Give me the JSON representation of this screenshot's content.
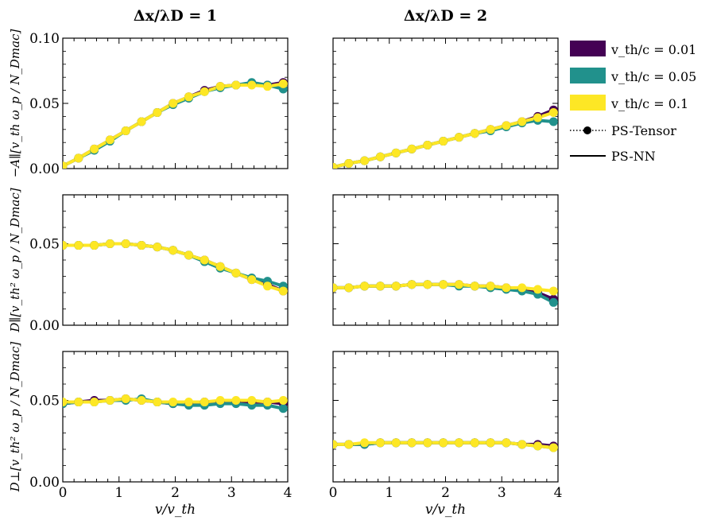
{
  "chart_data": {
    "type": "line",
    "columns": [
      {
        "title": "Δx/λD = 1"
      },
      {
        "title": "Δx/λD = 2"
      }
    ],
    "rows": [
      {
        "ylabel": "−A∥[v_th ω_p / N_Dmac]",
        "ylim": [
          0,
          0.1
        ],
        "yticks": [
          0.0,
          0.05,
          0.1
        ],
        "ytick_labels": [
          "0.00",
          "0.05",
          "0.10"
        ]
      },
      {
        "ylabel": "D∥[v_th² ω_p / N_Dmac]",
        "ylim": [
          0,
          0.08
        ],
        "yticks": [
          0.0,
          0.05
        ],
        "ytick_labels": [
          "0.00",
          "0.05"
        ]
      },
      {
        "ylabel": "D⊥[v_th² ω_p / N_Dmac]",
        "ylim": [
          0,
          0.08
        ],
        "yticks": [
          0.0,
          0.05
        ],
        "ytick_labels": [
          "0.00",
          "0.05"
        ]
      }
    ],
    "xlabel": "v/v_th",
    "xlim": [
      0,
      4
    ],
    "xticks": [
      0,
      1,
      2,
      3,
      4
    ],
    "xtick_labels": [
      "0",
      "1",
      "2",
      "3",
      "4"
    ],
    "x": [
      0.0,
      0.28,
      0.56,
      0.84,
      1.12,
      1.4,
      1.68,
      1.96,
      2.24,
      2.52,
      2.8,
      3.08,
      3.36,
      3.64,
      3.92
    ],
    "legend": [
      {
        "label": "v_th/c = 0.01",
        "color": "#440154"
      },
      {
        "label": "v_th/c = 0.05",
        "color": "#21918c"
      },
      {
        "label": "v_th/c = 0.1",
        "color": "#fde725"
      },
      {
        "label": "PS-Tensor",
        "style": "dotted-marker"
      },
      {
        "label": "PS-NN",
        "style": "solid"
      }
    ],
    "panels": [
      {
        "row": 0,
        "col": 0,
        "series": [
          {
            "name": "v_th/c = 0.01",
            "color": "#440154",
            "values": [
              0.002,
              0.008,
              0.015,
              0.022,
              0.029,
              0.036,
              0.043,
              0.05,
              0.055,
              0.06,
              0.063,
              0.064,
              0.065,
              0.064,
              0.066
            ]
          },
          {
            "name": "v_th/c = 0.05",
            "color": "#21918c",
            "values": [
              0.002,
              0.008,
              0.014,
              0.021,
              0.029,
              0.036,
              0.043,
              0.049,
              0.054,
              0.059,
              0.062,
              0.064,
              0.066,
              0.064,
              0.061
            ]
          },
          {
            "name": "v_th/c = 0.1",
            "color": "#fde725",
            "values": [
              0.002,
              0.008,
              0.015,
              0.022,
              0.029,
              0.036,
              0.043,
              0.05,
              0.055,
              0.059,
              0.063,
              0.064,
              0.064,
              0.063,
              0.065
            ]
          }
        ]
      },
      {
        "row": 0,
        "col": 1,
        "series": [
          {
            "name": "v_th/c = 0.01",
            "color": "#440154",
            "values": [
              0.001,
              0.004,
              0.006,
              0.009,
              0.012,
              0.015,
              0.018,
              0.021,
              0.024,
              0.027,
              0.03,
              0.033,
              0.036,
              0.04,
              0.045
            ]
          },
          {
            "name": "v_th/c = 0.05",
            "color": "#21918c",
            "values": [
              0.001,
              0.004,
              0.006,
              0.009,
              0.012,
              0.015,
              0.018,
              0.021,
              0.024,
              0.027,
              0.029,
              0.032,
              0.035,
              0.037,
              0.036
            ]
          },
          {
            "name": "v_th/c = 0.1",
            "color": "#fde725",
            "values": [
              0.001,
              0.004,
              0.006,
              0.009,
              0.012,
              0.015,
              0.018,
              0.021,
              0.024,
              0.027,
              0.03,
              0.033,
              0.036,
              0.039,
              0.043
            ]
          }
        ]
      },
      {
        "row": 1,
        "col": 0,
        "series": [
          {
            "name": "v_th/c = 0.01",
            "color": "#440154",
            "values": [
              0.049,
              0.049,
              0.049,
              0.05,
              0.05,
              0.049,
              0.048,
              0.046,
              0.043,
              0.04,
              0.036,
              0.032,
              0.028,
              0.025,
              0.021
            ]
          },
          {
            "name": "v_th/c = 0.05",
            "color": "#21918c",
            "values": [
              0.049,
              0.049,
              0.049,
              0.05,
              0.05,
              0.049,
              0.048,
              0.046,
              0.043,
              0.039,
              0.035,
              0.032,
              0.029,
              0.027,
              0.024
            ]
          },
          {
            "name": "v_th/c = 0.1",
            "color": "#fde725",
            "values": [
              0.049,
              0.049,
              0.049,
              0.05,
              0.05,
              0.049,
              0.048,
              0.046,
              0.043,
              0.04,
              0.036,
              0.032,
              0.028,
              0.024,
              0.021
            ]
          }
        ]
      },
      {
        "row": 1,
        "col": 1,
        "series": [
          {
            "name": "v_th/c = 0.01",
            "color": "#440154",
            "values": [
              0.023,
              0.023,
              0.024,
              0.024,
              0.024,
              0.025,
              0.025,
              0.025,
              0.025,
              0.024,
              0.024,
              0.023,
              0.022,
              0.02,
              0.016
            ]
          },
          {
            "name": "v_th/c = 0.05",
            "color": "#21918c",
            "values": [
              0.023,
              0.023,
              0.024,
              0.024,
              0.024,
              0.025,
              0.025,
              0.025,
              0.024,
              0.024,
              0.023,
              0.022,
              0.021,
              0.019,
              0.014
            ]
          },
          {
            "name": "v_th/c = 0.1",
            "color": "#fde725",
            "values": [
              0.023,
              0.023,
              0.024,
              0.024,
              0.024,
              0.025,
              0.025,
              0.025,
              0.025,
              0.024,
              0.024,
              0.023,
              0.023,
              0.022,
              0.021
            ]
          }
        ]
      },
      {
        "row": 2,
        "col": 0,
        "series": [
          {
            "name": "v_th/c = 0.01",
            "color": "#440154",
            "values": [
              0.048,
              0.049,
              0.05,
              0.05,
              0.051,
              0.05,
              0.049,
              0.048,
              0.048,
              0.049,
              0.049,
              0.049,
              0.049,
              0.049,
              0.048
            ]
          },
          {
            "name": "v_th/c = 0.05",
            "color": "#21918c",
            "values": [
              0.048,
              0.049,
              0.049,
              0.05,
              0.05,
              0.051,
              0.049,
              0.048,
              0.047,
              0.047,
              0.048,
              0.048,
              0.047,
              0.047,
              0.045
            ]
          },
          {
            "name": "v_th/c = 0.1",
            "color": "#fde725",
            "values": [
              0.049,
              0.049,
              0.049,
              0.05,
              0.051,
              0.05,
              0.049,
              0.049,
              0.049,
              0.049,
              0.05,
              0.05,
              0.05,
              0.049,
              0.05
            ]
          }
        ]
      },
      {
        "row": 2,
        "col": 1,
        "series": [
          {
            "name": "v_th/c = 0.01",
            "color": "#440154",
            "values": [
              0.023,
              0.023,
              0.023,
              0.024,
              0.024,
              0.024,
              0.024,
              0.024,
              0.024,
              0.024,
              0.024,
              0.024,
              0.023,
              0.023,
              0.022
            ]
          },
          {
            "name": "v_th/c = 0.05",
            "color": "#21918c",
            "values": [
              0.023,
              0.023,
              0.023,
              0.024,
              0.024,
              0.024,
              0.024,
              0.024,
              0.024,
              0.024,
              0.024,
              0.024,
              0.023,
              0.022,
              0.021
            ]
          },
          {
            "name": "v_th/c = 0.1",
            "color": "#fde725",
            "values": [
              0.023,
              0.023,
              0.024,
              0.024,
              0.024,
              0.024,
              0.024,
              0.024,
              0.024,
              0.024,
              0.024,
              0.024,
              0.023,
              0.022,
              0.021
            ]
          }
        ]
      }
    ]
  }
}
